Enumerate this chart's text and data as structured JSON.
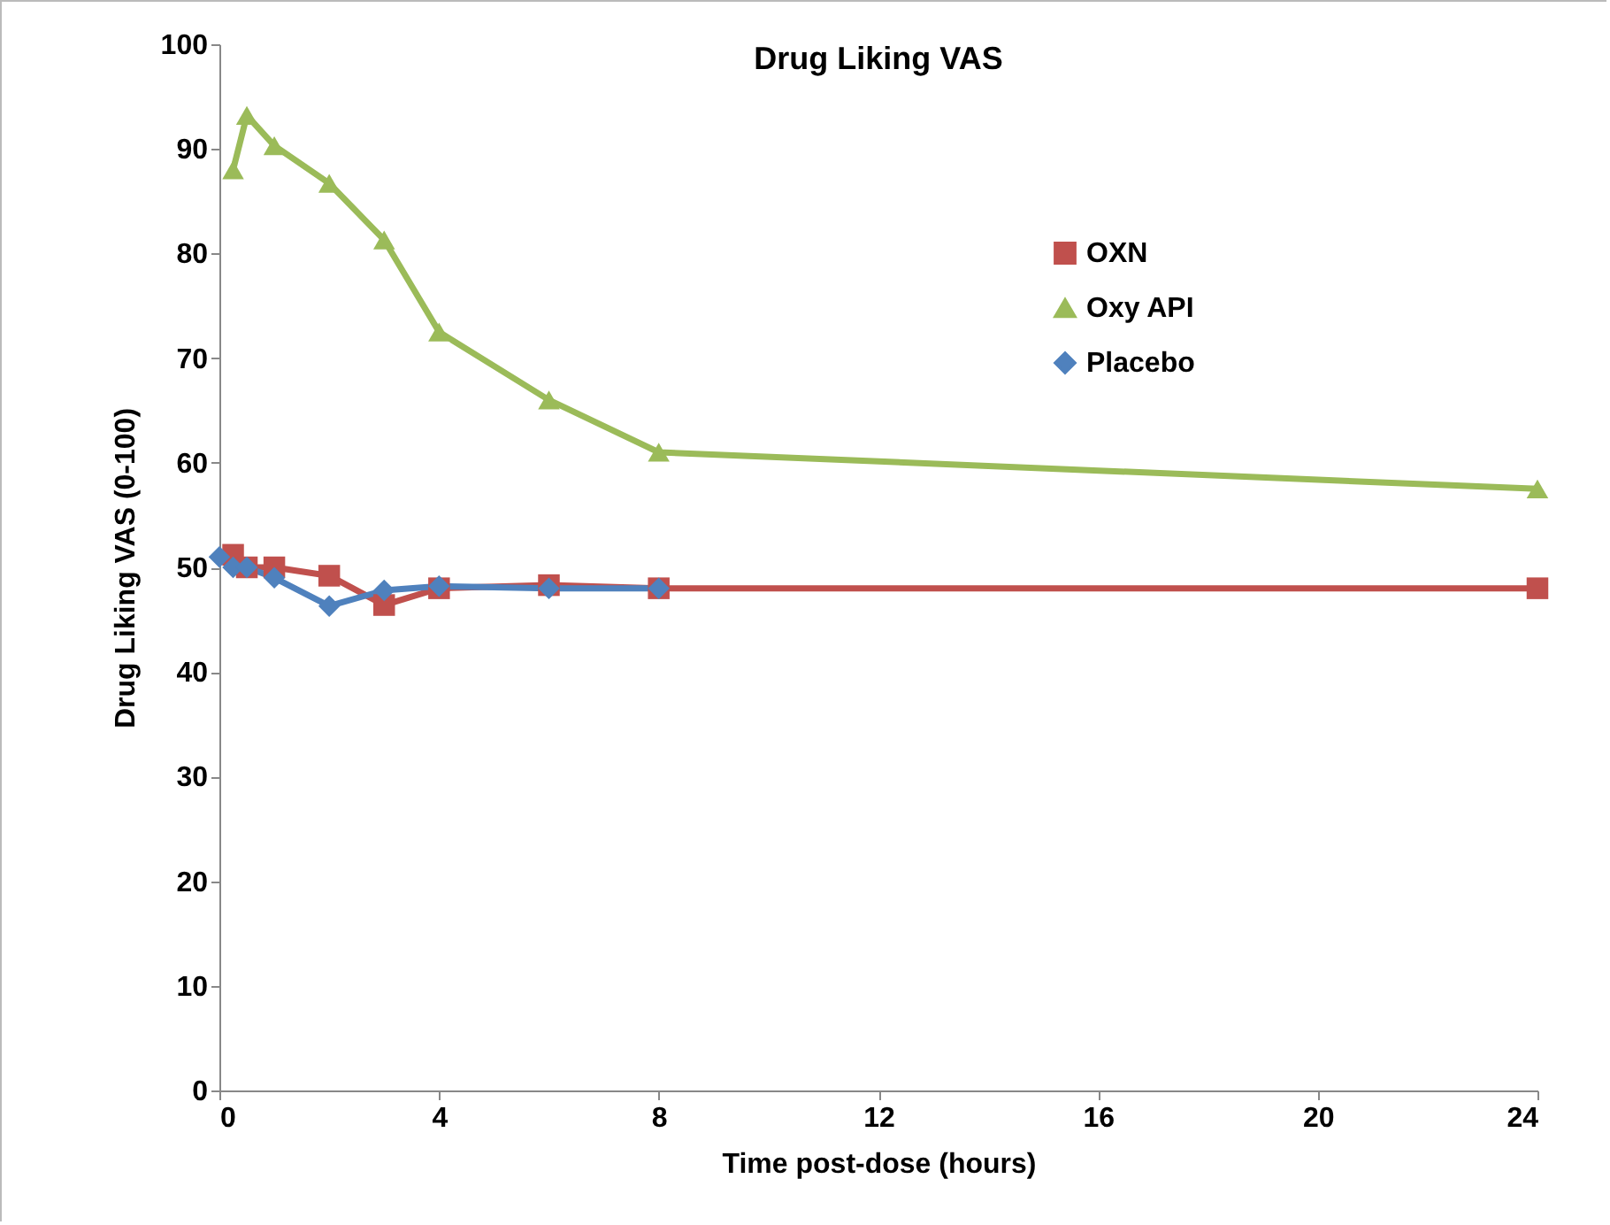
{
  "chart_data": {
    "type": "line",
    "title": "Drug Liking VAS",
    "xlabel": "Time post-dose (hours)",
    "ylabel": "Drug Liking VAS (0-100)",
    "xlim": [
      0,
      24
    ],
    "xticks": [
      0,
      4,
      8,
      12,
      16,
      20,
      24
    ],
    "ylim": [
      0,
      100
    ],
    "yticks": [
      0,
      10,
      20,
      30,
      40,
      50,
      60,
      70,
      80,
      90,
      100
    ],
    "grid": false,
    "legend": "top right",
    "line_style": "solid",
    "series": [
      {
        "name": "OXN",
        "color": "#c0504d",
        "marker": "square",
        "x": [
          0.25,
          0.5,
          1,
          2,
          3,
          4,
          6,
          8,
          24
        ],
        "values": [
          51.2,
          50,
          50,
          49.2,
          46.4,
          48,
          48.3,
          48,
          48
        ]
      },
      {
        "name": "Oxy API",
        "color": "#9bbb59",
        "marker": "triangle",
        "x": [
          0.25,
          0.5,
          1,
          2,
          3,
          4,
          6,
          8,
          24
        ],
        "values": [
          88,
          93.2,
          90.3,
          86.7,
          81.3,
          72.5,
          66,
          61,
          57.5
        ]
      },
      {
        "name": "Placebo",
        "color": "#4f81bd",
        "marker": "diamond",
        "x": [
          0,
          0.25,
          0.5,
          1,
          2,
          3,
          4,
          6,
          8
        ],
        "values": [
          51,
          50,
          50,
          49,
          46.3,
          47.8,
          48.2,
          48,
          48
        ]
      }
    ]
  }
}
